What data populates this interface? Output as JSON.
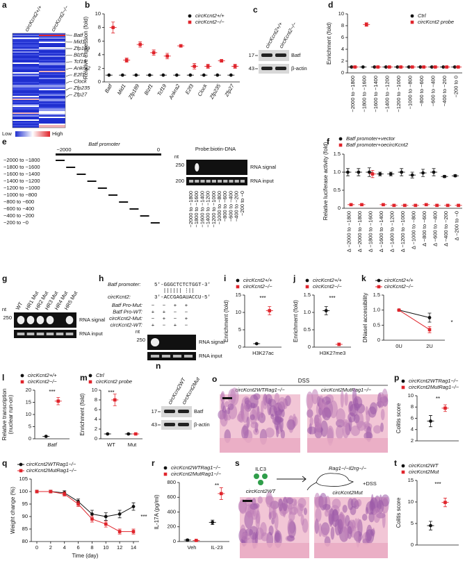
{
  "chart_data": [
    {
      "panel": "b",
      "type": "dot",
      "ylabel": "Relative expression (fold)",
      "ylim": [
        0,
        10
      ],
      "yticks": [
        0,
        2,
        4,
        6,
        8,
        10
      ],
      "categories": [
        "Batf",
        "Mid1",
        "Zfp189",
        "Blzf1",
        "Tcf19",
        "Ankra2",
        "E2f3",
        "Clock",
        "Zfp235",
        "Zfp27"
      ],
      "legend": "upper right",
      "series": [
        {
          "name": "circKcnt2+/+",
          "color": "#111111",
          "marker": "circle",
          "values": [
            1,
            1,
            1,
            1,
            1,
            1,
            1,
            1,
            1,
            1
          ]
        },
        {
          "name": "circKcnt2−/−",
          "color": "#e0242b",
          "marker": "square",
          "values": [
            8,
            3.2,
            5.5,
            4.3,
            3.8,
            5.3,
            2.3,
            2.3,
            3.1,
            2.3
          ],
          "errors": [
            0.8,
            0.3,
            0.4,
            0.4,
            0.4,
            0.2,
            0.4,
            0.3,
            0.2,
            0.3
          ]
        }
      ]
    },
    {
      "panel": "d",
      "type": "dot",
      "ylabel": "Enrichment (fold)",
      "ylim": [
        0,
        10
      ],
      "yticks": [
        0,
        2,
        4,
        6,
        8,
        10
      ],
      "categories": [
        "−2000 to −1800",
        "−1800 to −1600",
        "−1600 to −1400",
        "−1400 to −1200",
        "−1200 to −1000",
        "−1000 to −800",
        "−800 to −600",
        "−600 to −400",
        "−400 to −200",
        "−200 to 0"
      ],
      "legend": "upper right",
      "series": [
        {
          "name": "Ctrl",
          "color": "#111111",
          "marker": "circle",
          "values": [
            1,
            1,
            1,
            1,
            1,
            1,
            1,
            1,
            1,
            1
          ]
        },
        {
          "name": "circKcnt2 probe",
          "color": "#e0242b",
          "marker": "square",
          "values": [
            1,
            8.2,
            1,
            1,
            1,
            1,
            1,
            1,
            1,
            1
          ],
          "errors": [
            0.1,
            0.3,
            0.1,
            0.1,
            0.1,
            0.1,
            0.1,
            0.1,
            0.1,
            0.1
          ]
        }
      ]
    },
    {
      "panel": "f",
      "type": "dot",
      "ylabel": "Relative luciferase activity (fold)",
      "ylim": [
        0,
        1.5
      ],
      "yticks": [
        0,
        0.5,
        {
          "value": 1,
          "label": "1.0"
        },
        1.5
      ],
      "categories": [
        "Δ −2000 to −1800",
        "Δ −2000 to −1800",
        "Δ −1800 to −1600",
        "Δ −1600 to −1400",
        "Δ −1400 to −1200",
        "Δ −1200 to −1000",
        "Δ −1000 to −800",
        "Δ −800 to −600",
        "Δ −600 to −400",
        "Δ −400 to −200",
        "Δ −200 to −0"
      ],
      "legend": "upper left",
      "series": [
        {
          "name": "Batf promoter+vector",
          "color": "#111111",
          "marker": "circle",
          "values": [
            1.0,
            1.0,
            1.0,
            0.95,
            0.95,
            1.0,
            0.92,
            0.98,
            1.0,
            0.88,
            0.9
          ],
          "errors": [
            0.1,
            0.1,
            0.12,
            0.05,
            0.05,
            0.1,
            0.08,
            0.1,
            0.1,
            0.03,
            0.03
          ]
        },
        {
          "name": "Batf promoter+oecircKcnt2",
          "color": "#e0242b",
          "marker": "square",
          "values": [
            0.1,
            0.1,
            0.95,
            0.1,
            0.08,
            0.08,
            0.08,
            0.1,
            0.08,
            0.08,
            0.08
          ],
          "errors": [
            0.03,
            0.03,
            0.1,
            0.03,
            0.03,
            0.03,
            0.03,
            0.03,
            0.03,
            0.03,
            0.03
          ]
        }
      ]
    },
    {
      "panel": "i",
      "type": "dot",
      "ylabel": "Enrichment (fold)",
      "ylim": [
        0,
        15
      ],
      "yticks": [
        0,
        5,
        10,
        15
      ],
      "categories": [
        "H3K27ac"
      ],
      "legend": "upper left",
      "annotations": [
        "***"
      ],
      "series": [
        {
          "name": "circKcnt2+/+",
          "color": "#111111",
          "marker": "circle",
          "values": [
            1
          ],
          "errors": [
            0.1
          ]
        },
        {
          "name": "circKcnt2−/−",
          "color": "#e0242b",
          "marker": "square",
          "values": [
            10.5
          ],
          "errors": [
            1.2
          ]
        }
      ]
    },
    {
      "panel": "j",
      "type": "dot",
      "ylabel": "Enrichment (fold)",
      "ylim": [
        0,
        1.5
      ],
      "yticks": [
        0,
        0.5,
        {
          "value": 1,
          "label": "1.0"
        },
        1.5
      ],
      "categories": [
        "H3K27me3"
      ],
      "legend": "upper left",
      "annotations": [
        "***"
      ],
      "series": [
        {
          "name": "circKcnt2+/+",
          "color": "#111111",
          "marker": "circle",
          "values": [
            1.05
          ],
          "errors": [
            0.12
          ]
        },
        {
          "name": "circKcnt2−/−",
          "color": "#e0242b",
          "marker": "square",
          "values": [
            0.08
          ],
          "errors": [
            0.04
          ]
        }
      ]
    },
    {
      "panel": "k",
      "type": "line",
      "ylabel": "DNaseI accessibility",
      "ylim": [
        0,
        1.5
      ],
      "yticks": [
        0,
        0.5,
        {
          "value": 1,
          "label": "1.0"
        },
        1.5
      ],
      "categories": [
        "0U",
        "2U"
      ],
      "legend": "upper left",
      "annotations": [
        "*"
      ],
      "series": [
        {
          "name": "circKcnt2+/+",
          "color": "#111111",
          "marker": "circle",
          "values": [
            1,
            0.75
          ],
          "errors": [
            0.02,
            0.15
          ]
        },
        {
          "name": "circKcnt2−/−",
          "color": "#e0242b",
          "marker": "square",
          "values": [
            1,
            0.35
          ],
          "errors": [
            0.02,
            0.1
          ]
        }
      ]
    },
    {
      "panel": "l",
      "type": "dot",
      "ylabel": [
        "Relative transcription",
        "(nuclear run-on)"
      ],
      "ylim": [
        0,
        20
      ],
      "yticks": [
        0,
        5,
        10,
        15,
        20
      ],
      "categories": [
        "Batf"
      ],
      "legend": "upper left",
      "annotations": [
        "***"
      ],
      "series": [
        {
          "name": "circKcnt2+/+",
          "color": "#111111",
          "marker": "circle",
          "values": [
            1
          ],
          "errors": [
            0.05
          ]
        },
        {
          "name": "circKcnt2−/−",
          "color": "#e0242b",
          "marker": "square",
          "values": [
            15.5
          ],
          "errors": [
            1.5
          ]
        }
      ]
    },
    {
      "panel": "m",
      "type": "dot",
      "ylabel": "Enrichment (fold)",
      "ylim": [
        0,
        10
      ],
      "yticks": [
        0,
        2,
        4,
        6,
        8,
        10
      ],
      "categories": [
        "WT",
        "Mut"
      ],
      "legend": "upper left",
      "annotations": [
        "***"
      ],
      "series": [
        {
          "name": "Ctrl",
          "color": "#111111",
          "marker": "circle",
          "values": [
            1,
            1
          ],
          "errors": [
            0.05,
            0.1
          ]
        },
        {
          "name": "circKcnt2 probe",
          "color": "#e0242b",
          "marker": "square",
          "values": [
            8,
            1
          ],
          "errors": [
            1.2,
            0.15
          ]
        }
      ]
    },
    {
      "panel": "p",
      "type": "dot",
      "ylabel": "Colitis score",
      "ylim": [
        2,
        10
      ],
      "yticks": [
        2,
        4,
        6,
        8,
        10
      ],
      "categories": [
        null
      ],
      "legend": "upper left",
      "annotations": [
        "**"
      ],
      "series": [
        {
          "name": "circKcnt2WTRag1−/−",
          "color": "#111111",
          "marker": "circle",
          "values": [
            5.5
          ],
          "errors": [
            1
          ]
        },
        {
          "name": "circKcnt2MutRag1−/−",
          "color": "#e0242b",
          "marker": "square",
          "values": [
            7.8
          ],
          "errors": [
            0.6
          ]
        }
      ]
    },
    {
      "panel": "q",
      "type": "line",
      "ylabel": "Weight change (%)",
      "xlabel": "Time (day)",
      "ylim": [
        80,
        105
      ],
      "yticks": [
        80,
        85,
        90,
        95,
        100,
        105
      ],
      "x": [
        0,
        2,
        4,
        6,
        8,
        10,
        12,
        14
      ],
      "xlim": [
        0,
        14
      ],
      "xticks": [
        0,
        2,
        4,
        6,
        8,
        10,
        12,
        14
      ],
      "legend": "upper left",
      "annotations": [
        "***"
      ],
      "series": [
        {
          "name": "circKcnt2WTRag1−/−",
          "color": "#111111",
          "marker": "circle",
          "values": [
            100,
            100,
            99.5,
            96,
            91,
            90,
            91,
            94
          ],
          "errors": [
            0.5,
            0.5,
            0.8,
            1,
            1.5,
            1.5,
            1.5,
            1.5
          ]
        },
        {
          "name": "circKcnt2MutRag1−/−",
          "color": "#e0242b",
          "marker": "square",
          "values": [
            100,
            100,
            99,
            95,
            89,
            87,
            84,
            84
          ],
          "errors": [
            0.5,
            0.5,
            0.8,
            1,
            1.2,
            1.2,
            1,
            1
          ]
        }
      ]
    },
    {
      "panel": "r",
      "type": "dot",
      "ylabel": "IL-17A (pg/ml)",
      "ylim": [
        0,
        800
      ],
      "yticks": [
        0,
        200,
        400,
        600,
        800
      ],
      "categories": [
        "Veh",
        "IL-23"
      ],
      "legend": "upper left",
      "annotations": [
        "**"
      ],
      "series": [
        {
          "name": "circKcnt2WTRag1−/−",
          "color": "#111111",
          "marker": "circle",
          "values": [
            20,
            260
          ],
          "errors": [
            10,
            30
          ]
        },
        {
          "name": "circKcnt2MutRag1−/−",
          "color": "#e0242b",
          "marker": "square",
          "values": [
            15,
            650
          ],
          "errors": [
            5,
            80
          ]
        }
      ]
    },
    {
      "panel": "t",
      "type": "dot",
      "ylabel": "Colitis score",
      "ylim": [
        0,
        15
      ],
      "yticks": [
        0,
        5,
        10,
        15
      ],
      "categories": [
        null
      ],
      "legend": "upper left",
      "annotations": [
        "***"
      ],
      "series": [
        {
          "name": "circKcnt2WT",
          "color": "#111111",
          "marker": "circle",
          "values": [
            4.5
          ],
          "errors": [
            1
          ]
        },
        {
          "name": "circKcnt2Mut",
          "color": "#e0242b",
          "marker": "square",
          "values": [
            9.9
          ],
          "errors": [
            1
          ]
        }
      ]
    }
  ],
  "figures": {
    "a": {
      "panel": "a",
      "columns": [
        "circKcnt2+/+",
        "circKcnt2−/−"
      ],
      "genes": [
        "Batf",
        "Mid1",
        "Zfp189",
        "Blzf1",
        "Tcf19",
        "Ankra2",
        "E2f3",
        "Clock",
        "Zfp235",
        "Zfp27"
      ],
      "scale": [
        "Low",
        "High"
      ]
    },
    "c": {
      "panel": "c",
      "lanes": [
        "circKcnt2+/+",
        "circKcnt2−/−"
      ],
      "markers": [
        "17",
        "43"
      ],
      "bands": [
        "Batf",
        "β-actin"
      ]
    },
    "e": {
      "panel": "e",
      "title": "Batf promoter",
      "scale": [
        "−2000",
        "0"
      ],
      "fragments": [
        "−2000 to −1800",
        "−1800 to −1600",
        "−1600 to −1400",
        "−1400 to −1200",
        "−1200 to −1000",
        "−1000 to −800",
        "−800 to −600",
        "−600 to −400",
        "−400 to −200",
        "−200 to −0"
      ],
      "probe": "Probe:biotin-DNA",
      "unit": "nt",
      "markers": [
        "250",
        "200"
      ],
      "rows": [
        "RNA signal",
        "RNA input"
      ]
    },
    "g": {
      "panel": "g",
      "lanes": [
        "WT",
        "HR1 Mut",
        "HR2 Mut",
        "HR3 Mut",
        "HR4 Mut",
        "HR5 Mut"
      ],
      "unit": "nt",
      "markers": [
        "250"
      ],
      "rows": [
        "RNA signal",
        "RNA input"
      ]
    },
    "h": {
      "panel": "h",
      "promoter_label": "Batf promoter:",
      "promoter_seq": "5′-GGGCTCTCTGGT-3′",
      "circ_label": "circKcnt2:",
      "circ_seq": "3′-ACCGAGAUACCU-5′",
      "conditions": [
        {
          "label": "Batf Pro-Mut:",
          "signs": [
            "−",
            "−",
            "+",
            "+"
          ]
        },
        {
          "label": "Batf Pro-WT:",
          "signs": [
            "+",
            "+",
            "−",
            "−"
          ]
        },
        {
          "label": "circKcnt2-Mut:",
          "signs": [
            "−",
            "+",
            "−",
            "+"
          ]
        },
        {
          "label": "circKcnt2-WT:",
          "signs": [
            "+",
            "−",
            "+",
            "−"
          ]
        }
      ],
      "unit": "nt",
      "markers": [
        "250"
      ],
      "rows": [
        "RNA signal",
        "RNA input"
      ]
    },
    "n": {
      "panel": "n",
      "lanes": [
        "circKcnt2WT",
        "circKcnt2Mut"
      ],
      "markers": [
        "17",
        "43"
      ],
      "bands": [
        "Batf",
        "β-actin"
      ]
    },
    "o": {
      "panel": "o",
      "treatment": "DSS",
      "groups": [
        "circKcnt2WTRag1−/−",
        "circKcnt2MutRag1−/−"
      ]
    },
    "s": {
      "panel": "s",
      "cells": "ILC3",
      "recipient": "Rag1−/−Il2rg−/−",
      "treatment": "+DSS",
      "groups": [
        "circKcnt2WT",
        "circKcnt2Mut"
      ]
    }
  }
}
